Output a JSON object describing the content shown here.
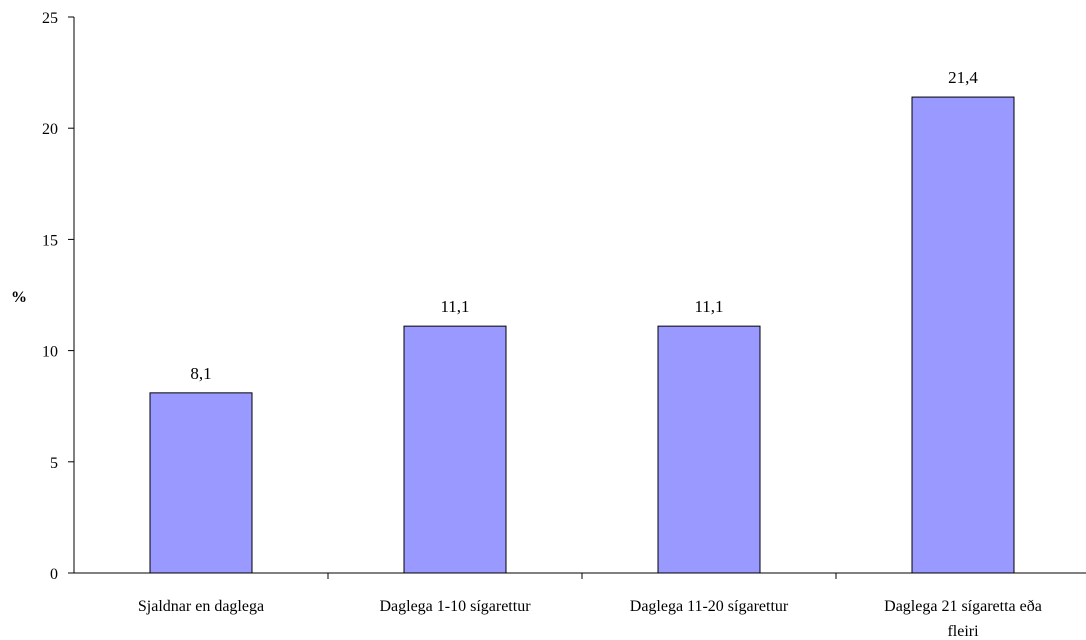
{
  "chart_data": {
    "type": "bar",
    "title": "",
    "xlabel": "",
    "ylabel": "%",
    "ylim": [
      0,
      25
    ],
    "yticks": [
      "0",
      "5",
      "10",
      "15",
      "20",
      "25"
    ],
    "categories": [
      [
        "Sjaldnar en daglega"
      ],
      [
        "Daglega 1-10 sígarettur"
      ],
      [
        "Daglega 11-20 sígarettur"
      ],
      [
        "Daglega 21 sígaretta eða",
        "fleiri"
      ]
    ],
    "values": [
      8.1,
      11.1,
      11.1,
      21.4
    ],
    "value_labels": [
      "8,1",
      "11,1",
      "11,1",
      "21,4"
    ],
    "grid": false,
    "legend": "none",
    "colors": {
      "bar_fill": "#9999ff",
      "bar_stroke": "#000000",
      "axis": "#000000"
    }
  }
}
